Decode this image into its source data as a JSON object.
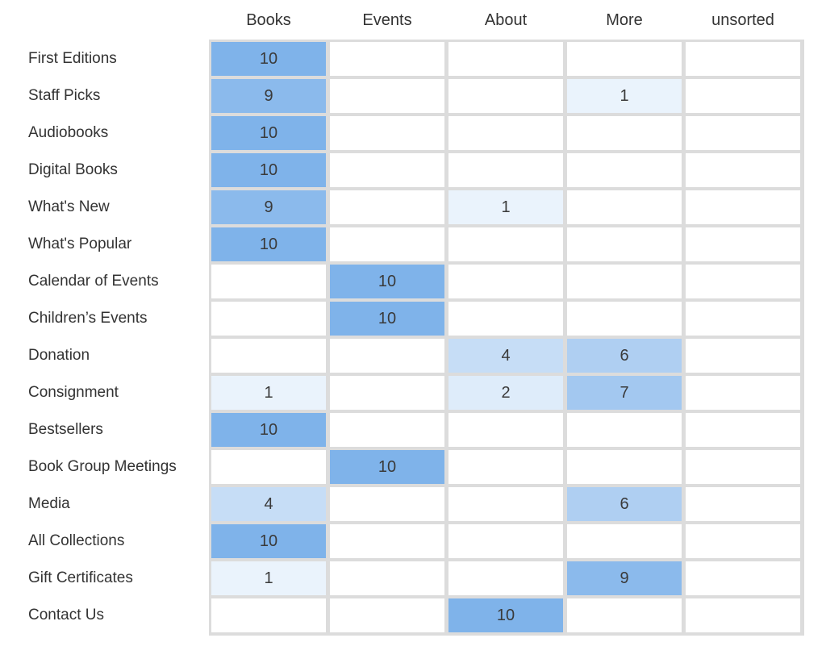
{
  "chart_data": {
    "type": "heatmap",
    "columns": [
      "Books",
      "Events",
      "About",
      "More",
      "unsorted"
    ],
    "rows": [
      "First Editions",
      "Staff Picks",
      "Audiobooks",
      "Digital Books",
      "What's New",
      "What's Popular",
      "Calendar of Events",
      "Children’s Events",
      "Donation",
      "Consignment",
      "Bestsellers",
      "Book Group Meetings",
      "Media",
      "All Collections",
      "Gift Certificates",
      "Contact Us"
    ],
    "values": [
      [
        10,
        null,
        null,
        null,
        null
      ],
      [
        9,
        null,
        null,
        1,
        null
      ],
      [
        10,
        null,
        null,
        null,
        null
      ],
      [
        10,
        null,
        null,
        null,
        null
      ],
      [
        9,
        null,
        1,
        null,
        null
      ],
      [
        10,
        null,
        null,
        null,
        null
      ],
      [
        null,
        10,
        null,
        null,
        null
      ],
      [
        null,
        10,
        null,
        null,
        null
      ],
      [
        null,
        null,
        4,
        6,
        null
      ],
      [
        1,
        null,
        2,
        7,
        null
      ],
      [
        10,
        null,
        null,
        null,
        null
      ],
      [
        null,
        10,
        null,
        null,
        null
      ],
      [
        4,
        null,
        null,
        6,
        null
      ],
      [
        10,
        null,
        null,
        null,
        null
      ],
      [
        1,
        null,
        null,
        9,
        null
      ],
      [
        null,
        null,
        10,
        null,
        null
      ]
    ],
    "value_range": [
      0,
      10
    ],
    "colors": {
      "high": "#7fb3ea",
      "low": "#ffffff",
      "grid": "#dcdcdc",
      "text": "#333333"
    }
  }
}
